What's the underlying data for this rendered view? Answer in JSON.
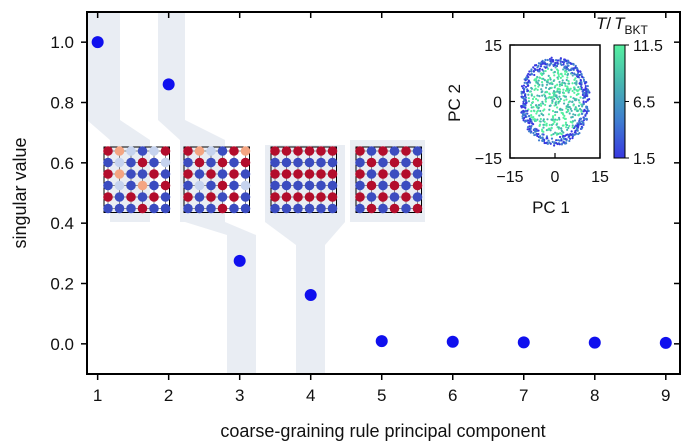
{
  "chart_data": [
    {
      "type": "scatter",
      "title": "",
      "xlabel": "coarse-graining rule principal component",
      "ylabel": "singular value",
      "xlim": [
        0.85,
        9.2
      ],
      "ylim": [
        -0.1,
        1.1
      ],
      "xticks": [
        "1",
        "2",
        "3",
        "4",
        "5",
        "6",
        "7",
        "8",
        "9"
      ],
      "yticks": [
        "0.0",
        "0.2",
        "0.4",
        "0.6",
        "0.8",
        "1.0"
      ],
      "marker_color": "#1010ee",
      "series": [
        {
          "x": [
            1,
            2,
            3,
            4,
            5,
            6,
            7,
            8,
            9
          ],
          "y": [
            1.0,
            0.86,
            0.275,
            0.162,
            0.009,
            0.007,
            0.005,
            0.004,
            0.003
          ]
        }
      ],
      "grid": false,
      "rule_lattices": {
        "description_colors": [
          "#b30d2c",
          "#3b4cc0",
          "#f4a582",
          "#c6d3ee"
        ],
        "count": 5
      }
    },
    {
      "type": "scatter",
      "xlabel": "PC 1",
      "ylabel": "PC 2",
      "xlim": [
        -15,
        15
      ],
      "ylim": [
        -15,
        15
      ],
      "xticks": [
        "−15",
        "0",
        "15"
      ],
      "yticks": [
        "−15",
        "0",
        "15"
      ],
      "series": [
        {
          "shape": "ring of points, radius about 11, colored by temperature; hot (green) points near center"
        }
      ],
      "colorbar": {
        "title_italic_T": "T",
        "title_sep": "/",
        "title_T_sub_base": "T",
        "title_subscript": "BKT",
        "ticks": [
          "11.5",
          "6.5",
          "1.5"
        ],
        "range": [
          1.5,
          11.5
        ],
        "colors": [
          "#3838e0",
          "#3f7dd0",
          "#47b5b0",
          "#55f0a0"
        ]
      }
    }
  ]
}
